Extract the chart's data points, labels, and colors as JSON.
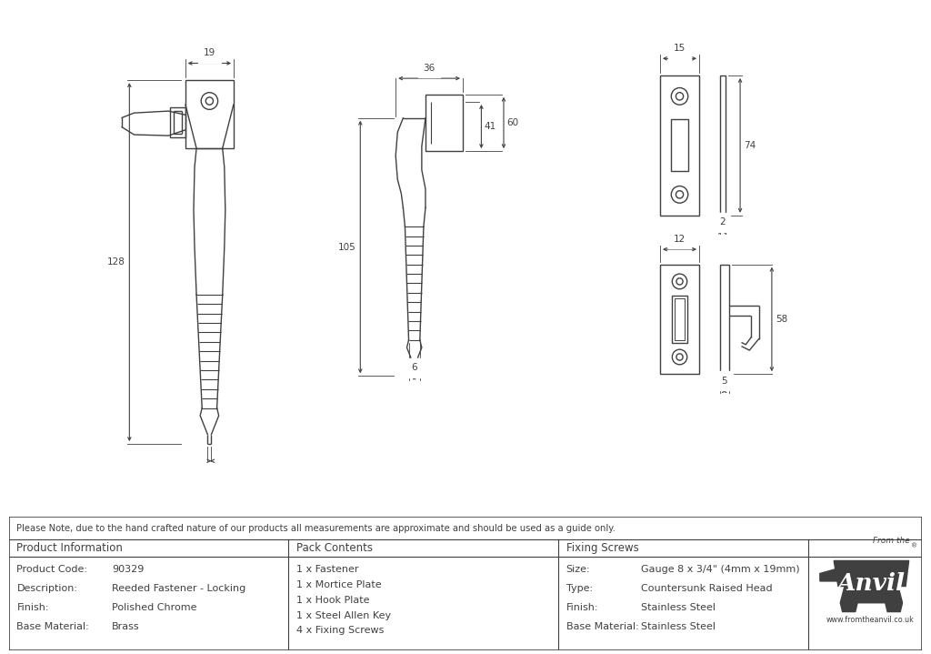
{
  "bg_color": "#ffffff",
  "line_color": "#404040",
  "note_text": "Please Note, due to the hand crafted nature of our products all measurements are approximate and should be used as a guide only.",
  "product_info_keys": [
    "Product Code:",
    "Description:",
    "Finish:",
    "Base Material:"
  ],
  "product_info_vals": [
    "90329",
    "Reeded Fastener - Locking",
    "Polished Chrome",
    "Brass"
  ],
  "pack_contents": [
    "1 x Fastener",
    "1 x Mortice Plate",
    "1 x Hook Plate",
    "1 x Steel Allen Key",
    "4 x Fixing Screws"
  ],
  "fixing_keys": [
    "Size:",
    "Type:",
    "Finish:",
    "Base Material:"
  ],
  "fixing_vals": [
    "Gauge 8 x 3/4\" (4mm x 19mm)",
    "Countersunk Raised Head",
    "Stainless Steel",
    "Stainless Steel"
  ],
  "dims": {
    "d19": "19",
    "d36": "36",
    "d128": "128",
    "d105": "105",
    "d41": "41",
    "d60": "60",
    "d6": "6",
    "d15": "15",
    "d74": "74",
    "d2": "2",
    "d12": "12",
    "d58": "58",
    "d5": "5"
  }
}
